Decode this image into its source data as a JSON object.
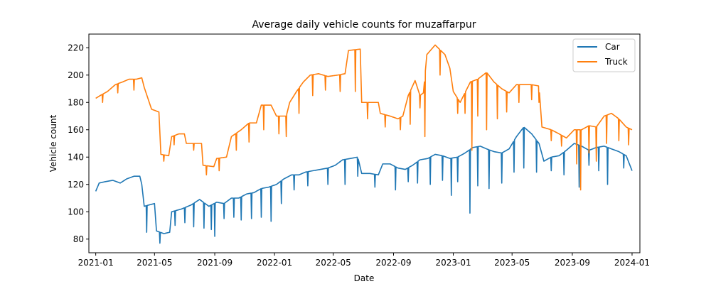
{
  "chart_data": {
    "type": "line",
    "title": "Average daily vehicle counts for muzaffarpur",
    "xlabel": "Date",
    "ylabel": "Vehicle count",
    "xlim": [
      "2020-12-18",
      "2024-01-17"
    ],
    "ylim": [
      70,
      230
    ],
    "grid": false,
    "legend_position": "top-right",
    "x_ticks": [
      "2021-01-01",
      "2021-05-01",
      "2021-09-01",
      "2022-01-01",
      "2022-05-01",
      "2022-09-01",
      "2023-01-01",
      "2023-05-01",
      "2023-09-01",
      "2024-01-01"
    ],
    "x_tick_labels": [
      "2021-01",
      "2021-05",
      "2021-09",
      "2022-01",
      "2022-05",
      "2022-09",
      "2023-01",
      "2023-05",
      "2023-09",
      "2024-01"
    ],
    "y_ticks": [
      80,
      100,
      120,
      140,
      160,
      180,
      200,
      220
    ],
    "series": [
      {
        "name": "Car",
        "color": "#1f77b4",
        "points": [
          [
            "2021-01-01",
            115
          ],
          [
            "2021-01-08",
            121
          ],
          [
            "2021-01-20",
            122
          ],
          [
            "2021-02-05",
            123
          ],
          [
            "2021-02-20",
            121
          ],
          [
            "2021-03-05",
            124
          ],
          [
            "2021-03-20",
            126
          ],
          [
            "2021-04-01",
            126
          ],
          [
            "2021-04-05",
            120
          ],
          [
            "2021-04-10",
            104
          ],
          [
            "2021-04-20",
            105
          ],
          [
            "2021-05-01",
            106
          ],
          [
            "2021-05-05",
            86
          ],
          [
            "2021-05-20",
            84
          ],
          [
            "2021-06-01",
            85
          ],
          [
            "2021-06-05",
            100
          ],
          [
            "2021-06-25",
            102
          ],
          [
            "2021-07-15",
            105
          ],
          [
            "2021-08-01",
            109
          ],
          [
            "2021-08-20",
            104
          ],
          [
            "2021-09-05",
            107
          ],
          [
            "2021-09-20",
            106
          ],
          [
            "2021-10-05",
            110
          ],
          [
            "2021-10-20",
            110
          ],
          [
            "2021-11-05",
            113
          ],
          [
            "2021-11-20",
            114
          ],
          [
            "2021-12-05",
            117
          ],
          [
            "2021-12-20",
            118
          ],
          [
            "2022-01-05",
            120
          ],
          [
            "2022-01-20",
            124
          ],
          [
            "2022-02-05",
            127
          ],
          [
            "2022-02-20",
            127
          ],
          [
            "2022-03-05",
            129
          ],
          [
            "2022-03-20",
            130
          ],
          [
            "2022-04-05",
            131
          ],
          [
            "2022-04-20",
            132
          ],
          [
            "2022-05-05",
            134
          ],
          [
            "2022-05-20",
            138
          ],
          [
            "2022-06-05",
            139
          ],
          [
            "2022-06-20",
            140
          ],
          [
            "2022-06-28",
            128
          ],
          [
            "2022-07-15",
            128
          ],
          [
            "2022-08-01",
            127
          ],
          [
            "2022-08-10",
            135
          ],
          [
            "2022-08-25",
            135
          ],
          [
            "2022-09-10",
            132
          ],
          [
            "2022-09-25",
            131
          ],
          [
            "2022-10-10",
            134
          ],
          [
            "2022-10-25",
            138
          ],
          [
            "2022-11-10",
            139
          ],
          [
            "2022-11-25",
            142
          ],
          [
            "2022-12-10",
            141
          ],
          [
            "2022-12-25",
            139
          ],
          [
            "2023-01-10",
            140
          ],
          [
            "2023-01-25",
            143
          ],
          [
            "2023-02-10",
            147
          ],
          [
            "2023-02-25",
            148
          ],
          [
            "2023-03-10",
            146
          ],
          [
            "2023-03-25",
            144
          ],
          [
            "2023-04-10",
            143
          ],
          [
            "2023-04-25",
            146
          ],
          [
            "2023-05-10",
            155
          ],
          [
            "2023-05-25",
            162
          ],
          [
            "2023-06-10",
            157
          ],
          [
            "2023-06-25",
            150
          ],
          [
            "2023-07-05",
            137
          ],
          [
            "2023-07-20",
            140
          ],
          [
            "2023-08-05",
            141
          ],
          [
            "2023-08-20",
            145
          ],
          [
            "2023-09-05",
            150
          ],
          [
            "2023-09-20",
            148
          ],
          [
            "2023-10-05",
            145
          ],
          [
            "2023-10-20",
            147
          ],
          [
            "2023-11-05",
            148
          ],
          [
            "2023-11-20",
            146
          ],
          [
            "2023-12-05",
            144
          ],
          [
            "2023-12-20",
            141
          ],
          [
            "2024-01-01",
            130
          ]
        ],
        "dips": [
          [
            "2021-04-15",
            85
          ],
          [
            "2021-05-12",
            77
          ],
          [
            "2021-06-12",
            90
          ],
          [
            "2021-07-02",
            92
          ],
          [
            "2021-07-20",
            89
          ],
          [
            "2021-08-10",
            88
          ],
          [
            "2021-08-25",
            87
          ],
          [
            "2021-09-01",
            82
          ],
          [
            "2021-09-20",
            95
          ],
          [
            "2021-10-10",
            96
          ],
          [
            "2021-10-25",
            94
          ],
          [
            "2021-11-15",
            95
          ],
          [
            "2021-12-05",
            96
          ],
          [
            "2021-12-25",
            93
          ],
          [
            "2022-01-15",
            106
          ],
          [
            "2022-02-10",
            116
          ],
          [
            "2022-03-10",
            119
          ],
          [
            "2022-04-20",
            120
          ],
          [
            "2022-05-25",
            120
          ],
          [
            "2022-06-20",
            126
          ],
          [
            "2022-07-25",
            118
          ],
          [
            "2022-09-05",
            116
          ],
          [
            "2022-10-01",
            122
          ],
          [
            "2022-10-20",
            121
          ],
          [
            "2022-11-15",
            120
          ],
          [
            "2022-12-10",
            123
          ],
          [
            "2022-12-28",
            112
          ],
          [
            "2023-01-10",
            122
          ],
          [
            "2023-02-04",
            99
          ],
          [
            "2023-02-20",
            119
          ],
          [
            "2023-03-15",
            117
          ],
          [
            "2023-04-10",
            121
          ],
          [
            "2023-05-05",
            129
          ],
          [
            "2023-05-25",
            132
          ],
          [
            "2023-06-20",
            129
          ],
          [
            "2023-07-20",
            130
          ],
          [
            "2023-08-15",
            127
          ],
          [
            "2023-09-15",
            118
          ],
          [
            "2023-10-05",
            134
          ],
          [
            "2023-10-25",
            130
          ],
          [
            "2023-11-12",
            120
          ],
          [
            "2023-12-15",
            132
          ]
        ]
      },
      {
        "name": "Truck",
        "color": "#ff7f0e",
        "points": [
          [
            "2021-01-01",
            183
          ],
          [
            "2021-01-10",
            185
          ],
          [
            "2021-01-25",
            188
          ],
          [
            "2021-02-10",
            193
          ],
          [
            "2021-02-25",
            195
          ],
          [
            "2021-03-10",
            197
          ],
          [
            "2021-03-25",
            197
          ],
          [
            "2021-04-05",
            198
          ],
          [
            "2021-04-10",
            191
          ],
          [
            "2021-04-25",
            175
          ],
          [
            "2021-05-10",
            173
          ],
          [
            "2021-05-14",
            142
          ],
          [
            "2021-05-30",
            141
          ],
          [
            "2021-06-05",
            155
          ],
          [
            "2021-06-20",
            157
          ],
          [
            "2021-07-01",
            157
          ],
          [
            "2021-07-05",
            150
          ],
          [
            "2021-07-25",
            150
          ],
          [
            "2021-08-05",
            150
          ],
          [
            "2021-08-08",
            134
          ],
          [
            "2021-08-30",
            133
          ],
          [
            "2021-09-05",
            139
          ],
          [
            "2021-09-25",
            140
          ],
          [
            "2021-10-05",
            155
          ],
          [
            "2021-10-25",
            160
          ],
          [
            "2021-11-10",
            165
          ],
          [
            "2021-11-25",
            165
          ],
          [
            "2021-12-05",
            178
          ],
          [
            "2021-12-25",
            178
          ],
          [
            "2022-01-05",
            170
          ],
          [
            "2022-01-25",
            170
          ],
          [
            "2022-02-01",
            180
          ],
          [
            "2022-02-15",
            188
          ],
          [
            "2022-03-01",
            195
          ],
          [
            "2022-03-15",
            200
          ],
          [
            "2022-04-01",
            201
          ],
          [
            "2022-04-20",
            199
          ],
          [
            "2022-05-10",
            200
          ],
          [
            "2022-05-25",
            201
          ],
          [
            "2022-06-01",
            218
          ],
          [
            "2022-06-25",
            219
          ],
          [
            "2022-06-28",
            180
          ],
          [
            "2022-07-15",
            180
          ],
          [
            "2022-08-01",
            180
          ],
          [
            "2022-08-05",
            172
          ],
          [
            "2022-08-25",
            170
          ],
          [
            "2022-09-10",
            168
          ],
          [
            "2022-09-20",
            170
          ],
          [
            "2022-10-01",
            185
          ],
          [
            "2022-10-15",
            196
          ],
          [
            "2022-10-25",
            185
          ],
          [
            "2022-11-01",
            187
          ],
          [
            "2022-11-08",
            215
          ],
          [
            "2022-11-25",
            222
          ],
          [
            "2022-12-15",
            215
          ],
          [
            "2022-12-25",
            205
          ],
          [
            "2023-01-01",
            188
          ],
          [
            "2023-01-15",
            180
          ],
          [
            "2023-02-05",
            195
          ],
          [
            "2023-02-20",
            197
          ],
          [
            "2023-03-10",
            202
          ],
          [
            "2023-03-25",
            195
          ],
          [
            "2023-04-10",
            190
          ],
          [
            "2023-04-25",
            187
          ],
          [
            "2023-05-10",
            193
          ],
          [
            "2023-05-25",
            193
          ],
          [
            "2023-06-10",
            193
          ],
          [
            "2023-06-25",
            192
          ],
          [
            "2023-07-01",
            162
          ],
          [
            "2023-07-20",
            160
          ],
          [
            "2023-08-05",
            157
          ],
          [
            "2023-08-20",
            154
          ],
          [
            "2023-09-05",
            160
          ],
          [
            "2023-09-20",
            160
          ],
          [
            "2023-10-05",
            163
          ],
          [
            "2023-10-20",
            162
          ],
          [
            "2023-11-05",
            170
          ],
          [
            "2023-11-20",
            172
          ],
          [
            "2023-12-05",
            168
          ],
          [
            "2023-12-20",
            162
          ],
          [
            "2024-01-01",
            160
          ]
        ],
        "dips": [
          [
            "2021-01-15",
            180
          ],
          [
            "2021-02-15",
            187
          ],
          [
            "2021-03-20",
            189
          ],
          [
            "2021-05-20",
            137
          ],
          [
            "2021-06-10",
            149
          ],
          [
            "2021-07-20",
            145
          ],
          [
            "2021-08-15",
            127
          ],
          [
            "2021-09-10",
            130
          ],
          [
            "2021-10-15",
            145
          ],
          [
            "2021-11-10",
            151
          ],
          [
            "2021-12-10",
            160
          ],
          [
            "2022-01-10",
            157
          ],
          [
            "2022-01-25",
            155
          ],
          [
            "2022-02-20",
            172
          ],
          [
            "2022-03-20",
            185
          ],
          [
            "2022-04-15",
            189
          ],
          [
            "2022-05-15",
            188
          ],
          [
            "2022-06-15",
            188
          ],
          [
            "2022-07-10",
            168
          ],
          [
            "2022-08-15",
            162
          ],
          [
            "2022-09-15",
            160
          ],
          [
            "2022-10-05",
            164
          ],
          [
            "2022-10-25",
            176
          ],
          [
            "2022-11-04",
            155
          ],
          [
            "2022-12-05",
            200
          ],
          [
            "2023-01-10",
            172
          ],
          [
            "2023-01-25",
            172
          ],
          [
            "2023-02-08",
            145
          ],
          [
            "2023-02-20",
            170
          ],
          [
            "2023-03-10",
            160
          ],
          [
            "2023-04-01",
            168
          ],
          [
            "2023-04-20",
            173
          ],
          [
            "2023-05-15",
            180
          ],
          [
            "2023-06-10",
            182
          ],
          [
            "2023-06-25",
            180
          ],
          [
            "2023-07-20",
            152
          ],
          [
            "2023-08-10",
            148
          ],
          [
            "2023-09-10",
            135
          ],
          [
            "2023-09-18",
            116
          ],
          [
            "2023-10-05",
            143
          ],
          [
            "2023-10-20",
            137
          ],
          [
            "2023-11-10",
            150
          ],
          [
            "2023-12-05",
            152
          ],
          [
            "2023-12-25",
            149
          ]
        ]
      }
    ]
  }
}
